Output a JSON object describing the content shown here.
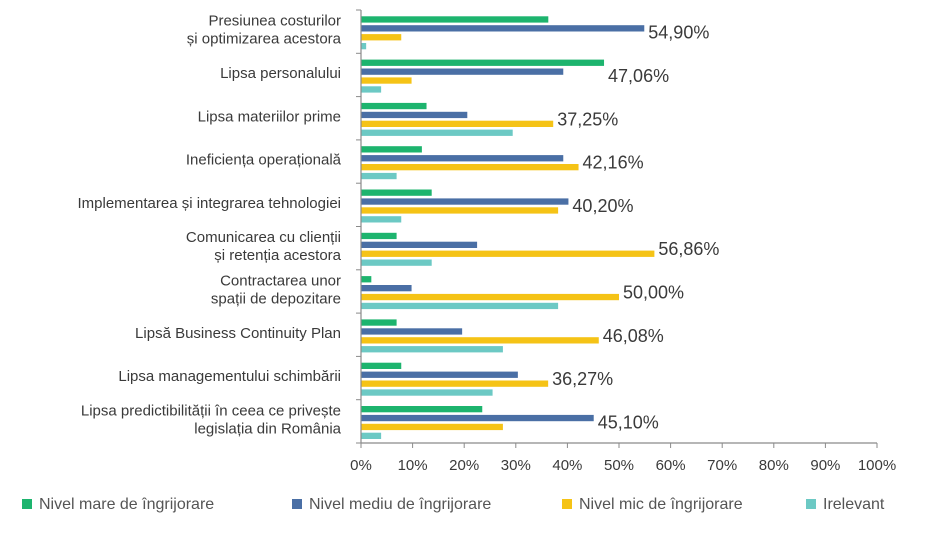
{
  "chart_data": {
    "type": "bar",
    "orientation": "horizontal",
    "categories": [
      [
        "Presiunea costurilor",
        "și optimizarea acestora"
      ],
      [
        "Lipsa personalului"
      ],
      [
        "Lipsa materiilor prime"
      ],
      [
        "Ineficiența operațională"
      ],
      [
        "Implementarea și integrarea tehnologiei"
      ],
      [
        "Comunicarea cu clienții",
        "și retenția acestora"
      ],
      [
        "Contractarea unor",
        "spații de depozitare"
      ],
      [
        "Lipsă Business Continuity Plan"
      ],
      [
        "Lipsa managementului schimbării"
      ],
      [
        "Lipsa predictibilității în ceea ce privește",
        "legislația din România"
      ]
    ],
    "series": [
      {
        "name": "Nivel mare de îngrijorare",
        "color": "#1db46e",
        "values": [
          36.3,
          47.1,
          12.7,
          11.8,
          13.7,
          6.9,
          2.0,
          6.9,
          7.8,
          23.5
        ]
      },
      {
        "name": "Nivel mediu de îngrijorare",
        "color": "#4a6fa5",
        "values": [
          54.9,
          39.2,
          20.6,
          39.2,
          40.2,
          22.5,
          9.8,
          19.6,
          30.4,
          45.1
        ]
      },
      {
        "name": "Nivel mic de îngrijorare",
        "color": "#f5c316",
        "values": [
          7.8,
          9.8,
          37.25,
          42.16,
          38.2,
          56.86,
          50.0,
          46.08,
          36.27,
          27.5
        ]
      },
      {
        "name": "Irelevant",
        "color": "#6cc9c4",
        "values": [
          1.0,
          3.9,
          29.4,
          6.9,
          7.8,
          13.7,
          38.2,
          27.5,
          25.5,
          3.9
        ]
      }
    ],
    "data_labels": [
      "54,90%",
      "47,06%",
      "37,25%",
      "42,16%",
      "40,20%",
      "56,86%",
      "50,00%",
      "46,08%",
      "36,27%",
      "45,10%"
    ],
    "x_ticks": [
      "0%",
      "10%",
      "20%",
      "30%",
      "40%",
      "50%",
      "60%",
      "70%",
      "80%",
      "90%",
      "100%"
    ],
    "xlim": [
      0,
      100
    ],
    "grid": false,
    "legend_position": "bottom"
  }
}
